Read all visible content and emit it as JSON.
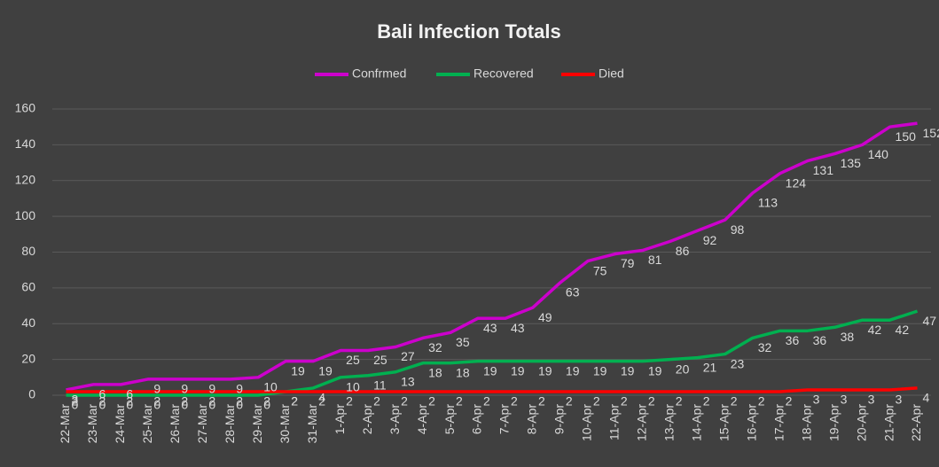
{
  "chart_data": {
    "type": "line",
    "title": "Bali Infection Totals",
    "categories": [
      "22-Mar",
      "23-Mar",
      "24-Mar",
      "25-Mar",
      "26-Mar",
      "27-Mar",
      "28-Mar",
      "29-Mar",
      "30-Mar",
      "31-Mar",
      "1-Apr",
      "2-Apr",
      "3-Apr",
      "4-Apr",
      "5-Apr",
      "6-Apr",
      "7-Apr",
      "8-Apr",
      "9-Apr",
      "10-Apr",
      "11-Apr",
      "12-Apr",
      "13-Apr",
      "14-Apr",
      "15-Apr",
      "16-Apr",
      "17-Apr",
      "18-Apr",
      "19-Apr",
      "20-Apr",
      "21-Apr",
      "22-Apr"
    ],
    "series": [
      {
        "name": "Confrmed",
        "color": "#cc00cc",
        "values": [
          3,
          6,
          6,
          9,
          9,
          9,
          9,
          10,
          19,
          19,
          25,
          25,
          27,
          32,
          35,
          43,
          43,
          49,
          63,
          75,
          79,
          81,
          86,
          92,
          98,
          113,
          124,
          131,
          135,
          140,
          150,
          152
        ]
      },
      {
        "name": "Recovered",
        "color": "#00b050",
        "values": [
          0,
          0,
          0,
          0,
          0,
          0,
          0,
          0,
          2,
          4,
          10,
          11,
          13,
          18,
          18,
          19,
          19,
          19,
          19,
          19,
          19,
          19,
          20,
          21,
          23,
          32,
          36,
          36,
          38,
          42,
          42,
          47
        ]
      },
      {
        "name": "Died",
        "color": "#ff0000",
        "values": [
          2,
          2,
          2,
          2,
          2,
          2,
          2,
          2,
          2,
          2,
          2,
          2,
          2,
          2,
          2,
          2,
          2,
          2,
          2,
          2,
          2,
          2,
          2,
          2,
          2,
          2,
          2,
          3,
          3,
          3,
          3,
          4
        ]
      }
    ],
    "ylim": [
      0,
      160
    ],
    "yticks": [
      0,
      20,
      40,
      60,
      80,
      100,
      120,
      140,
      160
    ],
    "grid": true,
    "legend": "top"
  }
}
